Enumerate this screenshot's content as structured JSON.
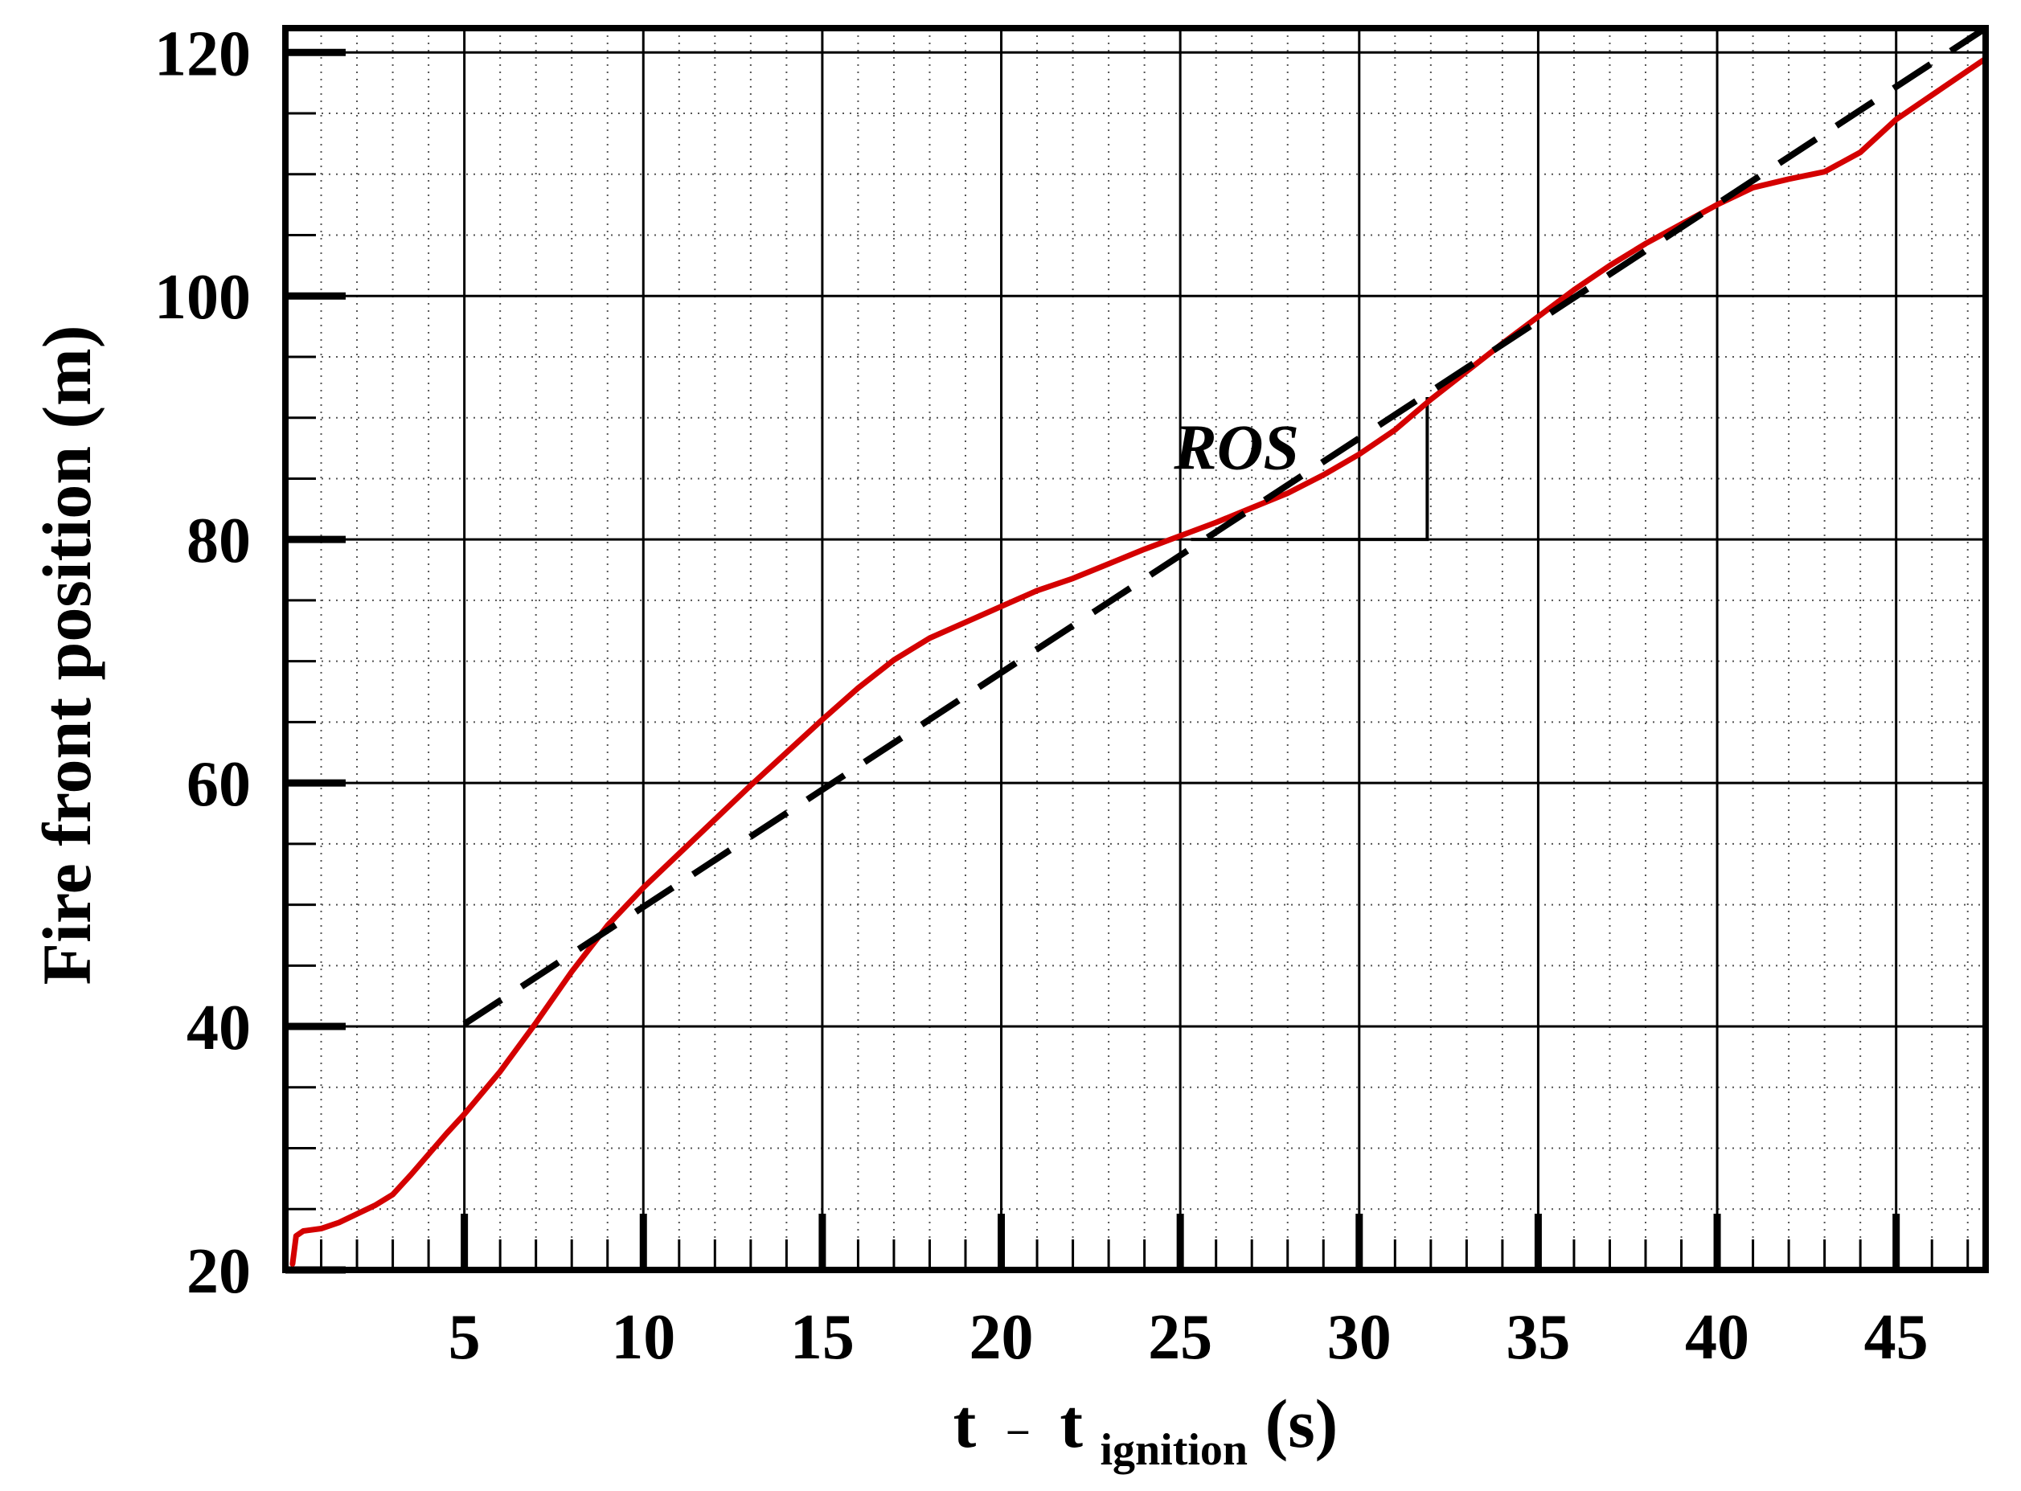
{
  "chart_data": {
    "type": "line",
    "title": "",
    "xlabel": {
      "main": "t",
      "operator": "–",
      "sub_base": "t",
      "subscript": "ignition",
      "unit": "(s)"
    },
    "ylabel": "Fire front position (m)",
    "xlim": [
      0,
      47.5
    ],
    "ylim": [
      20,
      122
    ],
    "x_major_ticks": [
      5,
      10,
      15,
      20,
      25,
      30,
      35,
      40,
      45
    ],
    "x_tick_labels": [
      "5",
      "10",
      "15",
      "20",
      "25",
      "30",
      "35",
      "40",
      "45"
    ],
    "y_major_ticks": [
      20,
      40,
      60,
      80,
      100,
      120
    ],
    "y_tick_labels": [
      "20",
      "40",
      "60",
      "80",
      "100",
      "120"
    ],
    "y_minor_step": 5,
    "x_minor_step": 1,
    "grid": true,
    "colors": {
      "measured": "#d40000",
      "fit": "#000000",
      "grid": "#000000",
      "frame": "#000000"
    },
    "series": [
      {
        "id": "measured",
        "style": "solid",
        "x": [
          0.2,
          0.3,
          0.5,
          1.0,
          1.5,
          2.0,
          2.5,
          3.0,
          3.5,
          4.0,
          4.5,
          5.0,
          6.0,
          7.0,
          8.0,
          9.0,
          10.0,
          11.0,
          12.0,
          13.0,
          14.0,
          15.0,
          16.0,
          17.0,
          18.0,
          19.0,
          20.0,
          21.0,
          22.0,
          23.0,
          24.0,
          25.0,
          26.0,
          27.0,
          28.0,
          29.0,
          30.0,
          31.0,
          32.0,
          33.0,
          34.0,
          35.0,
          36.0,
          37.0,
          38.0,
          39.0,
          40.0,
          41.0,
          42.0,
          43.0,
          44.0,
          45.0,
          46.0,
          47.0,
          47.5
        ],
        "y": [
          20.5,
          22.8,
          23.2,
          23.4,
          23.9,
          24.6,
          25.3,
          26.2,
          27.8,
          29.5,
          31.2,
          32.8,
          36.3,
          40.3,
          44.5,
          48.3,
          51.4,
          54.2,
          57.0,
          59.8,
          62.5,
          65.2,
          67.8,
          70.1,
          71.9,
          73.2,
          74.5,
          75.8,
          76.8,
          78.0,
          79.2,
          80.3,
          81.4,
          82.6,
          83.8,
          85.3,
          87.0,
          89.0,
          91.5,
          93.8,
          96.1,
          98.3,
          100.5,
          102.5,
          104.3,
          105.9,
          107.5,
          108.9,
          109.6,
          110.2,
          111.8,
          114.5,
          116.5,
          118.5,
          119.5
        ]
      },
      {
        "id": "fit",
        "style": "dashed",
        "x": [
          5.0,
          47.5
        ],
        "y": [
          40.2,
          122.0
        ]
      }
    ],
    "annotations": [
      {
        "text": "ROS",
        "x": 25.5,
        "y": 85.8
      }
    ],
    "slope_triangle": {
      "x": [
        25.3,
        31.9,
        31.9
      ],
      "y": [
        80.0,
        80.0,
        91.7
      ]
    }
  }
}
